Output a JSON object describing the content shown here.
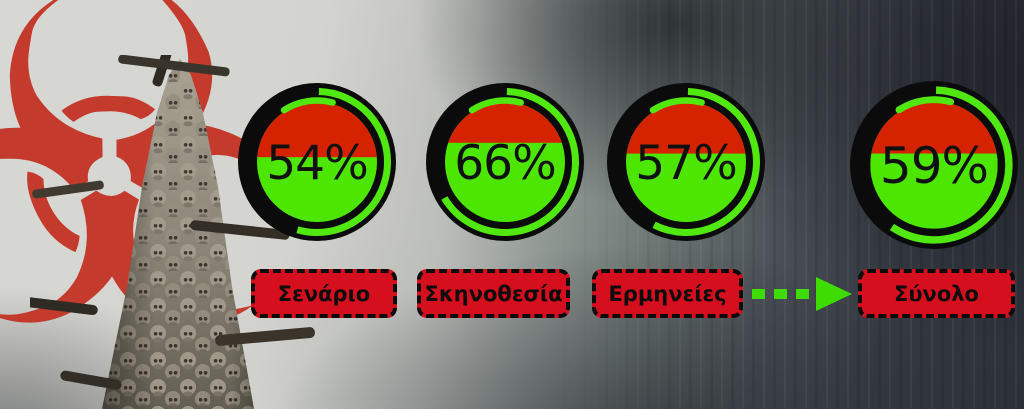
{
  "ratings": {
    "items": [
      {
        "label": "Σενάριο",
        "percent": 54,
        "percent_text": "54%"
      },
      {
        "label": "Σκηνοθεσία",
        "percent": 66,
        "percent_text": "66%"
      },
      {
        "label": "Ερμηνείες",
        "percent": 57,
        "percent_text": "57%"
      },
      {
        "label": "Σύνολο",
        "percent": 59,
        "percent_text": "59%"
      }
    ]
  },
  "background": {
    "biohazard_glyph": "☣"
  },
  "colors": {
    "gauge_red": "#d52300",
    "gauge_green": "#4ce600",
    "arc_green": "#50e80e",
    "ring_black": "#0b0b0b",
    "chip_red": "#d50f1e",
    "arrow_green": "#3fdc00",
    "biohazard_red": "#c43527"
  },
  "chart_data": {
    "type": "gauge",
    "categories": [
      "Σενάριο",
      "Σκηνοθεσία",
      "Ερμηνείες",
      "Σύνολο"
    ],
    "values": [
      54,
      66,
      57,
      59
    ],
    "unit": "%",
    "legend_position": "none",
    "annotations": [
      "dashed arrow flows from Ερμηνείες to Σύνολο"
    ],
    "notes": "each gauge: green fill height = value %, red remainder on top; green ring arc sweeps value % clockwise from 12 o'clock"
  }
}
